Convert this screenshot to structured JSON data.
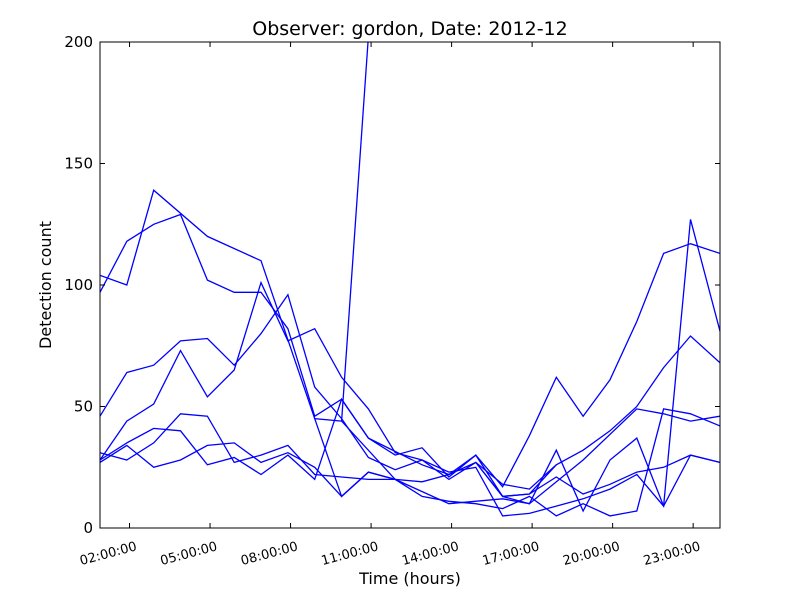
{
  "chart_data": {
    "type": "line",
    "title": "Observer: gordon, Date: 2012-12",
    "xlabel": "Time (hours)",
    "ylabel": "Detection count",
    "xlim": [
      0.9,
      24.0
    ],
    "ylim": [
      0,
      200
    ],
    "yticks": [
      0,
      50,
      100,
      150,
      200
    ],
    "xticks": [
      {
        "value": 2,
        "label": "02:00:00"
      },
      {
        "value": 5,
        "label": "05:00:00"
      },
      {
        "value": 8,
        "label": "08:00:00"
      },
      {
        "value": 11,
        "label": "11:00:00"
      },
      {
        "value": 14,
        "label": "14:00:00"
      },
      {
        "value": 17,
        "label": "17:00:00"
      },
      {
        "value": 20,
        "label": "20:00:00"
      },
      {
        "value": 23,
        "label": "23:00:00"
      }
    ],
    "line_color": "#0000ff",
    "grid": false,
    "series": [
      {
        "values": [
          [
            0.9,
            104
          ],
          [
            1.9,
            100
          ],
          [
            2.9,
            139
          ],
          [
            4.9,
            120
          ],
          [
            6.9,
            110
          ],
          [
            8.9,
            45
          ],
          [
            9.9,
            44
          ],
          [
            11.9,
            20
          ],
          [
            13.9,
            10
          ],
          [
            15.9,
            12
          ],
          [
            16.9,
            10
          ],
          [
            18.9,
            28
          ],
          [
            20.9,
            49
          ],
          [
            21.9,
            47
          ],
          [
            22.9,
            44
          ],
          [
            24.0,
            46
          ]
        ]
      },
      {
        "values": [
          [
            0.9,
            97
          ],
          [
            1.9,
            118
          ],
          [
            2.9,
            125
          ],
          [
            3.9,
            129
          ],
          [
            4.9,
            102
          ],
          [
            5.9,
            97
          ],
          [
            6.9,
            97
          ],
          [
            7.9,
            82
          ],
          [
            8.9,
            46
          ],
          [
            9.9,
            53
          ],
          [
            10.9,
            37
          ],
          [
            12.9,
            26
          ],
          [
            13.9,
            22
          ],
          [
            14.9,
            30
          ],
          [
            15.9,
            17
          ],
          [
            16.9,
            38
          ],
          [
            17.9,
            62
          ],
          [
            18.9,
            46
          ],
          [
            19.9,
            61
          ],
          [
            20.9,
            85
          ],
          [
            21.9,
            113
          ],
          [
            22.9,
            117
          ],
          [
            24.0,
            113
          ]
        ]
      },
      {
        "values": [
          [
            0.9,
            46
          ],
          [
            1.9,
            64
          ],
          [
            2.9,
            67
          ],
          [
            3.9,
            77
          ],
          [
            4.9,
            78
          ],
          [
            5.9,
            67
          ],
          [
            6.9,
            80
          ],
          [
            7.9,
            96
          ],
          [
            8.9,
            58
          ],
          [
            9.9,
            45
          ],
          [
            10.9,
            29
          ],
          [
            11.9,
            24
          ],
          [
            12.9,
            28
          ],
          [
            13.9,
            20
          ],
          [
            14.9,
            27
          ],
          [
            15.9,
            18
          ],
          [
            16.9,
            16
          ],
          [
            17.9,
            26
          ],
          [
            18.9,
            32
          ],
          [
            19.9,
            40
          ],
          [
            20.9,
            50
          ],
          [
            21.9,
            66
          ],
          [
            22.9,
            79
          ],
          [
            24.0,
            68
          ]
        ]
      },
      {
        "values": [
          [
            0.9,
            28
          ],
          [
            1.9,
            44
          ],
          [
            2.9,
            51
          ],
          [
            3.9,
            73
          ],
          [
            4.9,
            54
          ],
          [
            5.9,
            65
          ],
          [
            6.9,
            101
          ],
          [
            7.9,
            77
          ],
          [
            8.9,
            82
          ],
          [
            9.9,
            62
          ],
          [
            10.9,
            49
          ],
          [
            11.9,
            31
          ],
          [
            12.9,
            28
          ],
          [
            13.9,
            23
          ],
          [
            14.9,
            25
          ],
          [
            15.9,
            5
          ],
          [
            16.9,
            6
          ],
          [
            17.9,
            9
          ],
          [
            18.9,
            12
          ],
          [
            19.9,
            16
          ],
          [
            20.9,
            22
          ],
          [
            21.9,
            9
          ],
          [
            22.9,
            127
          ],
          [
            24.0,
            81
          ]
        ]
      },
      {
        "values": [
          [
            0.9,
            28
          ],
          [
            1.9,
            35
          ],
          [
            2.9,
            41
          ],
          [
            3.9,
            40
          ],
          [
            4.9,
            26
          ],
          [
            5.9,
            29
          ],
          [
            6.9,
            22
          ],
          [
            7.9,
            30
          ],
          [
            8.9,
            20
          ],
          [
            9.9,
            53
          ],
          [
            10.9,
            37
          ],
          [
            11.9,
            30
          ],
          [
            12.9,
            33
          ],
          [
            13.9,
            21
          ],
          [
            14.9,
            30
          ],
          [
            15.9,
            13
          ],
          [
            16.9,
            10
          ],
          [
            17.9,
            32
          ],
          [
            18.9,
            7
          ],
          [
            19.9,
            28
          ],
          [
            20.9,
            37
          ],
          [
            21.9,
            9
          ],
          [
            22.9,
            30
          ],
          [
            24.0,
            27
          ]
        ]
      },
      {
        "values": [
          [
            0.9,
            31
          ],
          [
            1.9,
            28
          ],
          [
            2.9,
            35
          ],
          [
            3.9,
            47
          ],
          [
            4.9,
            46
          ],
          [
            5.9,
            27
          ],
          [
            6.9,
            30
          ],
          [
            7.9,
            34
          ],
          [
            8.9,
            22
          ],
          [
            9.9,
            21
          ],
          [
            10.9,
            20
          ],
          [
            11.9,
            20
          ],
          [
            12.9,
            13
          ],
          [
            13.9,
            11
          ],
          [
            14.9,
            10
          ],
          [
            15.9,
            8
          ],
          [
            16.9,
            13
          ],
          [
            17.9,
            5
          ],
          [
            18.9,
            10
          ],
          [
            19.9,
            5
          ],
          [
            20.9,
            7
          ],
          [
            21.9,
            49
          ],
          [
            22.9,
            47
          ],
          [
            24.0,
            42
          ]
        ]
      },
      {
        "values": [
          [
            0.9,
            27
          ],
          [
            1.9,
            34
          ],
          [
            2.9,
            25
          ],
          [
            3.9,
            28
          ],
          [
            4.9,
            34
          ],
          [
            5.9,
            35
          ],
          [
            6.9,
            27
          ],
          [
            7.9,
            31
          ],
          [
            8.9,
            25
          ],
          [
            9.9,
            13
          ],
          [
            10.9,
            23
          ],
          [
            11.9,
            20
          ],
          [
            12.9,
            19
          ],
          [
            13.9,
            22
          ],
          [
            14.9,
            27
          ],
          [
            15.9,
            13
          ],
          [
            16.9,
            14
          ],
          [
            17.9,
            21
          ],
          [
            18.9,
            14
          ],
          [
            19.9,
            18
          ],
          [
            20.9,
            23
          ],
          [
            21.9,
            25
          ],
          [
            22.9,
            30
          ],
          [
            24.0,
            27
          ]
        ]
      },
      {
        "values": [
          [
            8.9,
            45
          ],
          [
            9.9,
            13
          ],
          [
            10.9,
            23
          ],
          [
            11.9,
            20
          ]
        ]
      },
      {
        "values": [
          [
            9.9,
            44
          ],
          [
            10.95,
            210
          ]
        ]
      },
      {
        "values": [
          [
            14.9,
            27
          ],
          [
            15.9,
            13
          ],
          [
            16.9,
            14
          ],
          [
            17.9,
            26
          ]
        ]
      }
    ]
  }
}
